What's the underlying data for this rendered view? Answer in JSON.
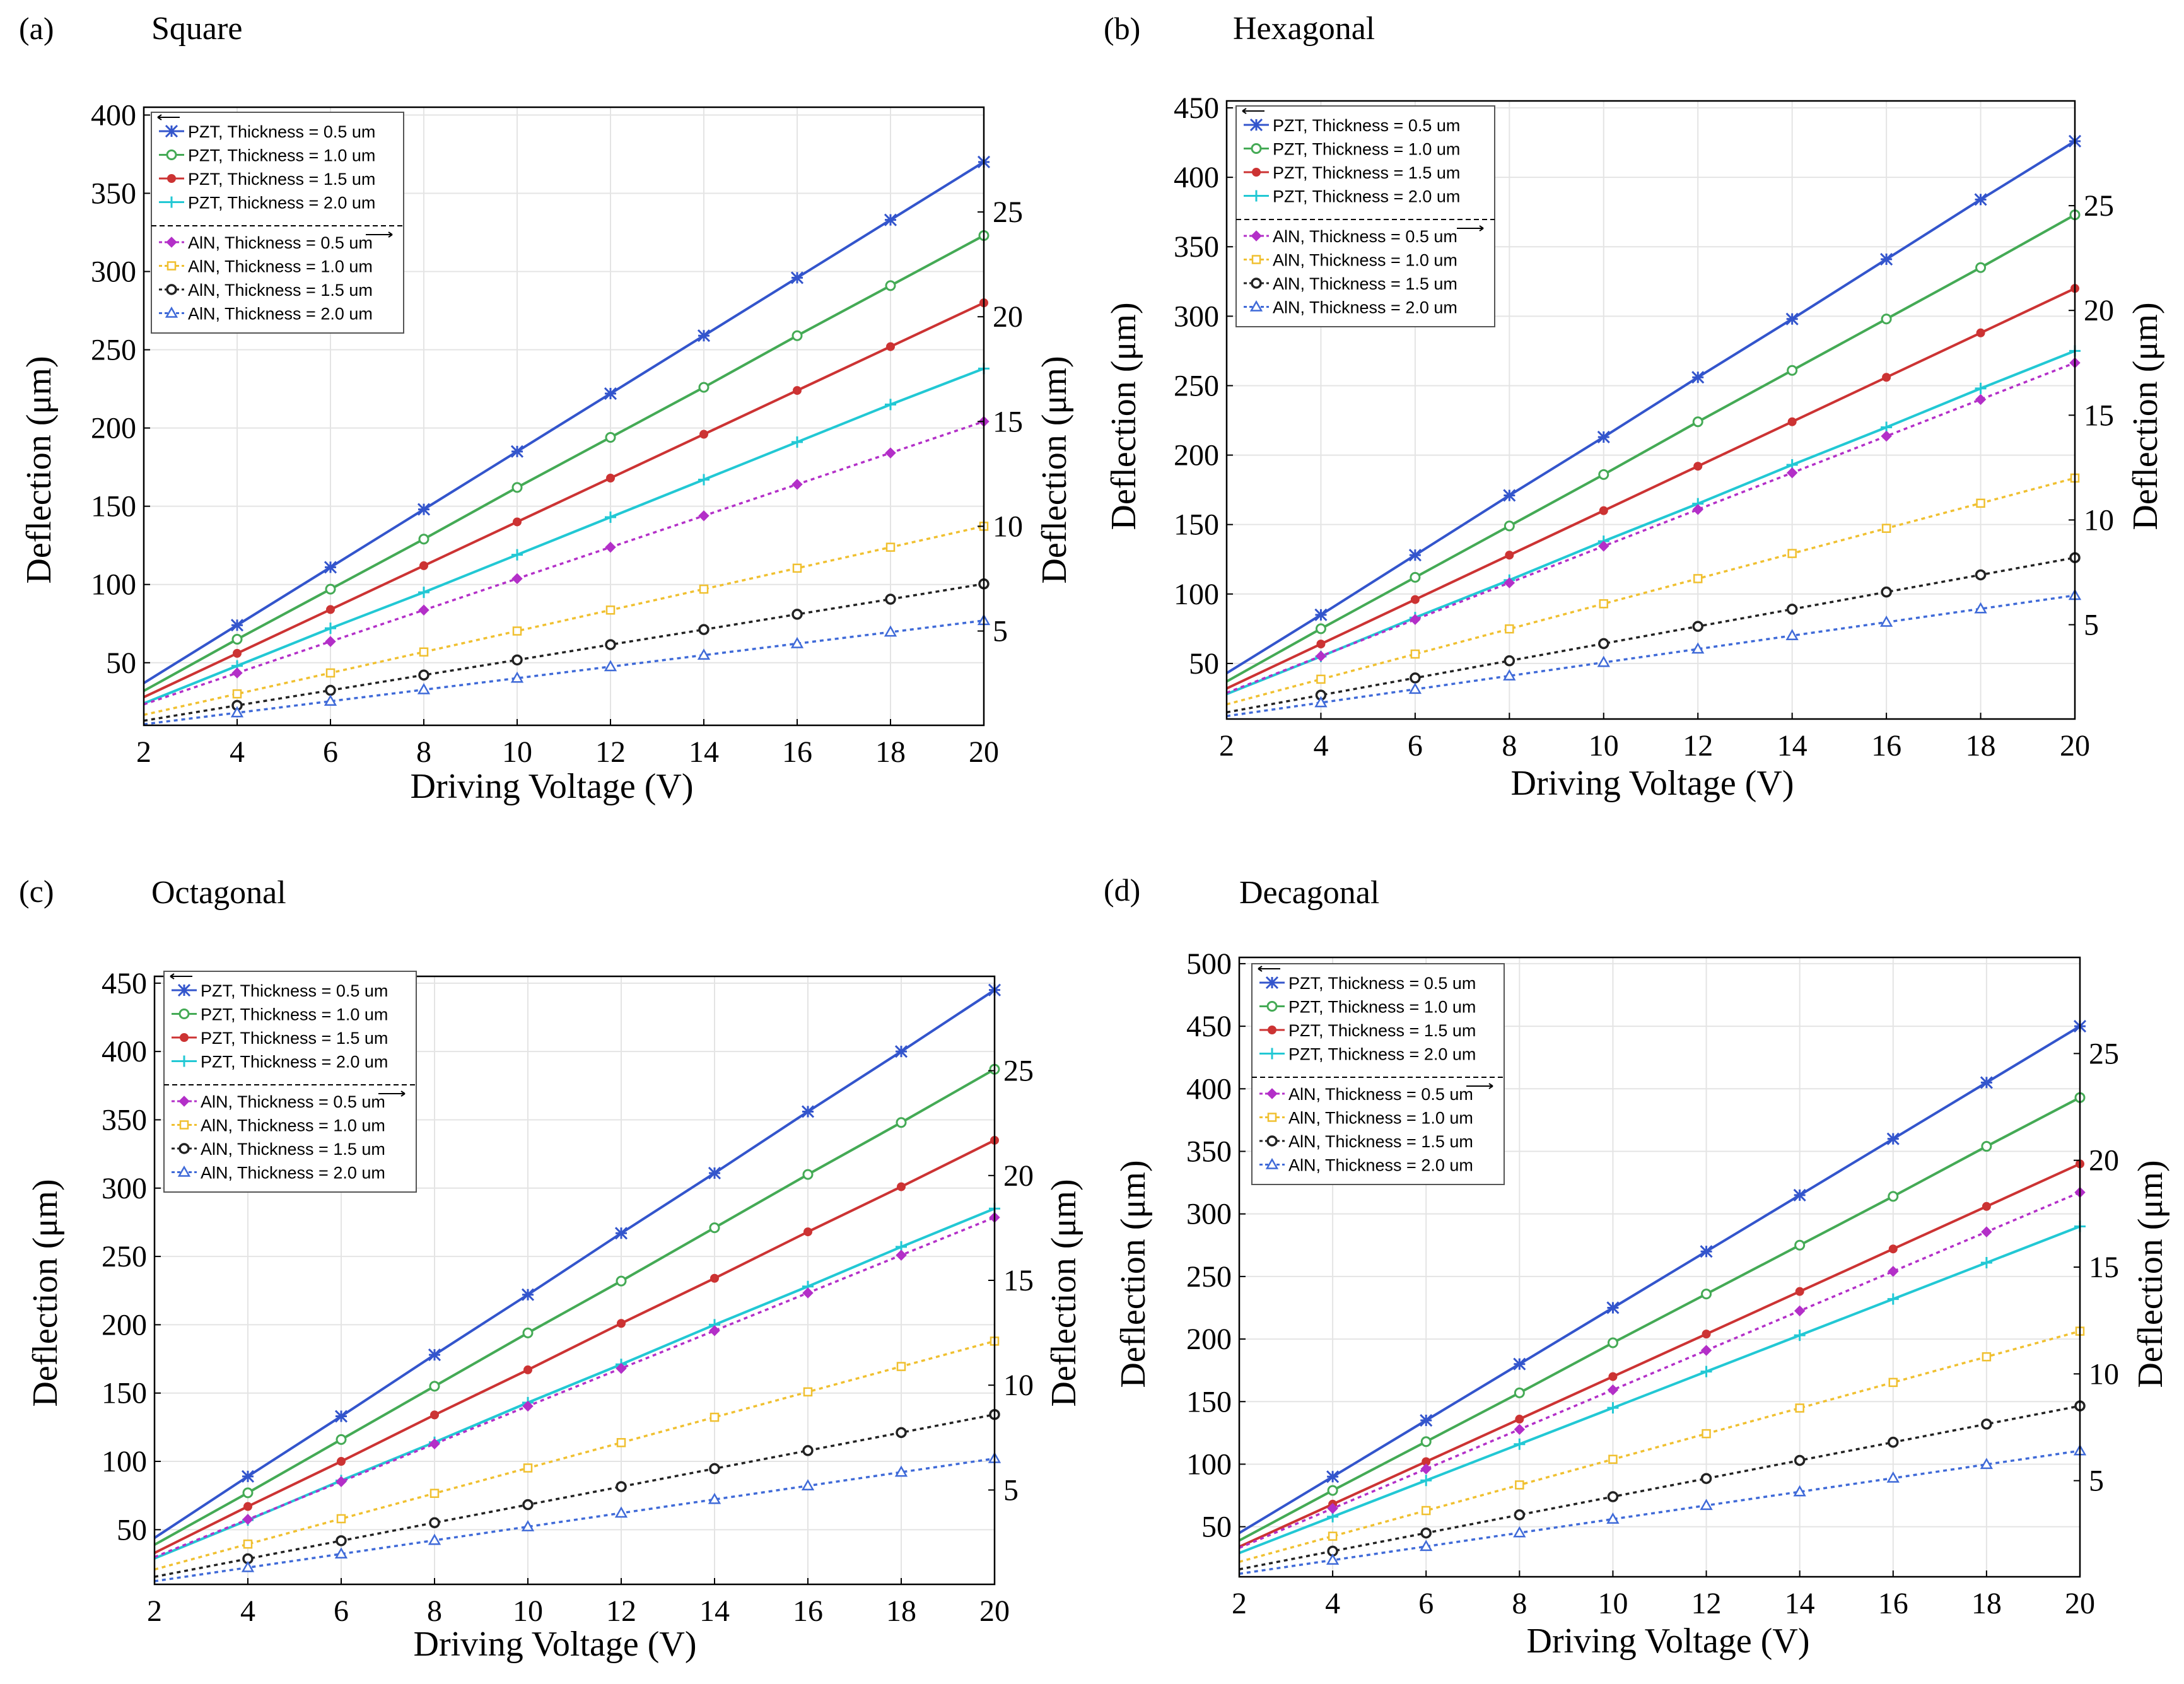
{
  "colors": {
    "pzt_0_5": "#3355cc",
    "pzt_1_0": "#44aa55",
    "pzt_1_5": "#cc3333",
    "pzt_2_0": "#22c8d4",
    "aln_0_5": "#b32fc8",
    "aln_1_0": "#f0c030",
    "aln_1_5": "#222222",
    "aln_2_0": "#3f6ad8",
    "grid": "#e4e4e4",
    "axis": "#000000"
  },
  "chart_data": [
    {
      "panel_label": "(a)",
      "title": "Square",
      "type": "line",
      "xlabel": "Driving Voltage (V)",
      "ylabel_left": "Deflection (μm)",
      "ylabel_right": "Deflection (μm)",
      "xlim": [
        2,
        20
      ],
      "ylim_left": [
        10,
        405
      ],
      "ylim_right": [
        0.5,
        30
      ],
      "xticks": [
        2,
        4,
        6,
        8,
        10,
        12,
        14,
        16,
        18,
        20
      ],
      "yticks_left": [
        50,
        100,
        150,
        200,
        250,
        300,
        350,
        400
      ],
      "yticks_right": [
        5,
        10,
        15,
        20,
        25
      ],
      "x": [
        2,
        4,
        6,
        8,
        10,
        12,
        14,
        16,
        18,
        20
      ],
      "series": [
        {
          "name": "PZT, Thickness = 0.5 um",
          "axis": "left",
          "values": [
            37,
            74,
            111,
            148,
            185,
            222,
            259,
            296,
            333,
            370
          ]
        },
        {
          "name": "PZT, Thickness = 1.0 um",
          "axis": "left",
          "values": [
            32,
            65,
            97,
            129,
            162,
            194,
            226,
            259,
            291,
            323
          ]
        },
        {
          "name": "PZT, Thickness = 1.5 um",
          "axis": "left",
          "values": [
            28,
            56,
            84,
            112,
            140,
            168,
            196,
            224,
            252,
            280
          ]
        },
        {
          "name": "PZT, Thickness = 2.0 um",
          "axis": "left",
          "values": [
            24,
            48,
            72,
            95,
            119,
            143,
            167,
            191,
            215,
            238
          ]
        },
        {
          "name": "AlN, Thickness = 0.5 um",
          "axis": "right",
          "values": [
            1.5,
            3,
            4.5,
            6,
            7.5,
            9,
            10.5,
            12,
            13.5,
            15
          ]
        },
        {
          "name": "AlN, Thickness = 1.0 um",
          "axis": "right",
          "values": [
            1.0,
            2.0,
            3.0,
            4.0,
            5.0,
            6.0,
            7.0,
            8.0,
            9.0,
            10.0
          ]
        },
        {
          "name": "AlN, Thickness = 1.5 um",
          "axis": "right",
          "values": [
            0.72,
            1.45,
            2.17,
            2.9,
            3.62,
            4.35,
            5.07,
            5.8,
            6.52,
            7.25
          ]
        },
        {
          "name": "AlN, Thickness = 2.0 um",
          "axis": "right",
          "values": [
            0.55,
            1.1,
            1.65,
            2.2,
            2.75,
            3.3,
            3.85,
            4.4,
            4.95,
            5.5
          ]
        }
      ]
    },
    {
      "panel_label": "(b)",
      "title": "Hexagonal",
      "type": "line",
      "xlabel": "Driving Voltage (V)",
      "ylabel_left": "Deflection (μm)",
      "ylabel_right": "Deflection (μm)",
      "xlim": [
        2,
        20
      ],
      "ylim_left": [
        10,
        455
      ],
      "ylim_right": [
        0.5,
        30
      ],
      "xticks": [
        2,
        4,
        6,
        8,
        10,
        12,
        14,
        16,
        18,
        20
      ],
      "yticks_left": [
        50,
        100,
        150,
        200,
        250,
        300,
        350,
        400,
        450
      ],
      "yticks_right": [
        5,
        10,
        15,
        20,
        25
      ],
      "x": [
        2,
        4,
        6,
        8,
        10,
        12,
        14,
        16,
        18,
        20
      ],
      "series": [
        {
          "name": "PZT, Thickness = 0.5 um",
          "axis": "left",
          "values": [
            43,
            85,
            128,
            171,
            213,
            256,
            298,
            341,
            384,
            426
          ]
        },
        {
          "name": "PZT, Thickness = 1.0 um",
          "axis": "left",
          "values": [
            37,
            75,
            112,
            149,
            186,
            224,
            261,
            298,
            335,
            373
          ]
        },
        {
          "name": "PZT, Thickness = 1.5 um",
          "axis": "left",
          "values": [
            32,
            64,
            96,
            128,
            160,
            192,
            224,
            256,
            288,
            320
          ]
        },
        {
          "name": "PZT, Thickness = 2.0 um",
          "axis": "left",
          "values": [
            28,
            55,
            83,
            110,
            138,
            165,
            193,
            220,
            248,
            275
          ]
        },
        {
          "name": "AlN, Thickness = 0.5 um",
          "axis": "right",
          "values": [
            1.75,
            3.5,
            5.25,
            7.0,
            8.75,
            10.5,
            12.25,
            14.0,
            15.75,
            17.5
          ]
        },
        {
          "name": "AlN, Thickness = 1.0 um",
          "axis": "right",
          "values": [
            1.2,
            2.4,
            3.6,
            4.8,
            6.0,
            7.2,
            8.4,
            9.6,
            10.8,
            12.0
          ]
        },
        {
          "name": "AlN, Thickness = 1.5 um",
          "axis": "right",
          "values": [
            0.82,
            1.64,
            2.46,
            3.28,
            4.1,
            4.92,
            5.74,
            6.56,
            7.38,
            8.2
          ]
        },
        {
          "name": "AlN, Thickness = 2.0 um",
          "axis": "right",
          "values": [
            0.64,
            1.28,
            1.92,
            2.56,
            3.2,
            3.84,
            4.48,
            5.12,
            5.76,
            6.4
          ]
        }
      ]
    },
    {
      "panel_label": "(c)",
      "title": "Octagonal",
      "type": "line",
      "xlabel": "Driving Voltage (V)",
      "ylabel_left": "Deflection (μm)",
      "ylabel_right": "Deflection (μm)",
      "xlim": [
        2,
        20
      ],
      "ylim_left": [
        10,
        455
      ],
      "ylim_right": [
        0.5,
        29.5
      ],
      "xticks": [
        2,
        4,
        6,
        8,
        10,
        12,
        14,
        16,
        18,
        20
      ],
      "yticks_left": [
        50,
        100,
        150,
        200,
        250,
        300,
        350,
        400,
        450
      ],
      "yticks_right": [
        5,
        10,
        15,
        20,
        25
      ],
      "x": [
        2,
        4,
        6,
        8,
        10,
        12,
        14,
        16,
        18,
        20
      ],
      "series": [
        {
          "name": "PZT, Thickness = 0.5 um",
          "axis": "left",
          "values": [
            44,
            89,
            133,
            178,
            222,
            267,
            311,
            356,
            400,
            445
          ]
        },
        {
          "name": "PZT, Thickness = 1.0 um",
          "axis": "left",
          "values": [
            39,
            77,
            116,
            155,
            194,
            232,
            271,
            310,
            348,
            387
          ]
        },
        {
          "name": "PZT, Thickness = 1.5 um",
          "axis": "left",
          "values": [
            33,
            67,
            100,
            134,
            167,
            201,
            234,
            268,
            301,
            335
          ]
        },
        {
          "name": "PZT, Thickness = 2.0 um",
          "axis": "left",
          "values": [
            29,
            57,
            86,
            114,
            143,
            171,
            200,
            228,
            257,
            285
          ]
        },
        {
          "name": "AlN, Thickness = 0.5 um",
          "axis": "right",
          "values": [
            1.8,
            3.6,
            5.4,
            7.2,
            9.0,
            10.8,
            12.6,
            14.4,
            16.2,
            18.0
          ]
        },
        {
          "name": "AlN, Thickness = 1.0 um",
          "axis": "right",
          "values": [
            1.21,
            2.42,
            3.63,
            4.84,
            6.05,
            7.26,
            8.47,
            9.68,
            10.89,
            12.1
          ]
        },
        {
          "name": "AlN, Thickness = 1.5 um",
          "axis": "right",
          "values": [
            0.86,
            1.72,
            2.58,
            3.44,
            4.3,
            5.16,
            6.02,
            6.88,
            7.74,
            8.6
          ]
        },
        {
          "name": "AlN, Thickness = 2.0 um",
          "axis": "right",
          "values": [
            0.65,
            1.3,
            1.95,
            2.6,
            3.25,
            3.9,
            4.55,
            5.2,
            5.85,
            6.5
          ]
        }
      ]
    },
    {
      "panel_label": "(d)",
      "title": "Decagonal",
      "type": "line",
      "xlabel": "Driving Voltage (V)",
      "ylabel_left": "Deflection (μm)",
      "ylabel_right": "Deflection (μm)",
      "xlim": [
        2,
        20
      ],
      "ylim_left": [
        10,
        505
      ],
      "ylim_right": [
        0.5,
        29.5
      ],
      "xticks": [
        2,
        4,
        6,
        8,
        10,
        12,
        14,
        16,
        18,
        20
      ],
      "yticks_left": [
        50,
        100,
        150,
        200,
        250,
        300,
        350,
        400,
        450,
        500
      ],
      "yticks_right": [
        5,
        10,
        15,
        20,
        25
      ],
      "x": [
        2,
        4,
        6,
        8,
        10,
        12,
        14,
        16,
        18,
        20
      ],
      "series": [
        {
          "name": "PZT, Thickness = 0.5 um",
          "axis": "left",
          "values": [
            45,
            90,
            135,
            180,
            225,
            270,
            315,
            360,
            405,
            450
          ]
        },
        {
          "name": "PZT, Thickness = 1.0 um",
          "axis": "left",
          "values": [
            39,
            79,
            118,
            157,
            197,
            236,
            275,
            314,
            354,
            393
          ]
        },
        {
          "name": "PZT, Thickness = 1.5 um",
          "axis": "left",
          "values": [
            34,
            68,
            102,
            136,
            170,
            204,
            238,
            272,
            306,
            340
          ]
        },
        {
          "name": "PZT, Thickness = 2.0 um",
          "axis": "left",
          "values": [
            29,
            58,
            87,
            116,
            145,
            174,
            203,
            232,
            261,
            290
          ]
        },
        {
          "name": "AlN, Thickness = 0.5 um",
          "axis": "right",
          "values": [
            1.85,
            3.7,
            5.55,
            7.4,
            9.25,
            11.1,
            12.95,
            14.8,
            16.65,
            18.5
          ]
        },
        {
          "name": "AlN, Thickness = 1.0 um",
          "axis": "right",
          "values": [
            1.2,
            2.4,
            3.6,
            4.8,
            6.0,
            7.2,
            8.4,
            9.6,
            10.8,
            12.0
          ]
        },
        {
          "name": "AlN, Thickness = 1.5 um",
          "axis": "right",
          "values": [
            0.85,
            1.7,
            2.55,
            3.4,
            4.25,
            5.1,
            5.95,
            6.8,
            7.65,
            8.5
          ]
        },
        {
          "name": "AlN, Thickness = 2.0 um",
          "axis": "right",
          "values": [
            0.64,
            1.28,
            1.92,
            2.56,
            3.2,
            3.84,
            4.48,
            5.12,
            5.76,
            6.4
          ]
        }
      ]
    }
  ]
}
